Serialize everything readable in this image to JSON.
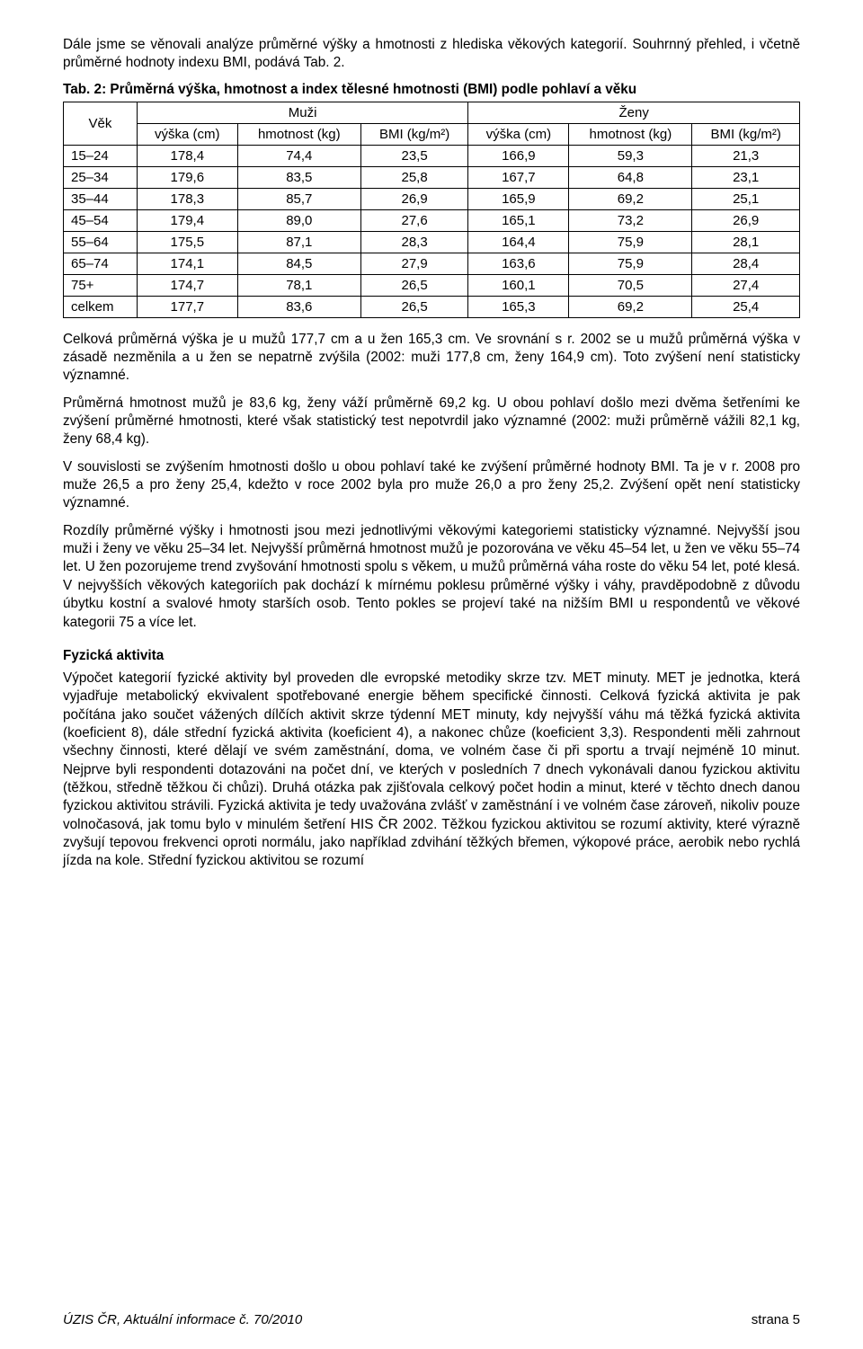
{
  "intro_paragraph": "Dále jsme se věnovali analýze průměrné výšky a hmotnosti z hlediska věkových kategorií. Souhrnný přehled, i včetně průměrné hodnoty indexu BMI, podává Tab. 2.",
  "table": {
    "caption": "Tab. 2: Průměrná výška, hmotnost a index tělesné hmotnosti (BMI) podle pohlaví a věku",
    "col_group_labels": {
      "age": "Věk",
      "men": "Muži",
      "women": "Ženy"
    },
    "subheaders": {
      "height": "výška (cm)",
      "weight": "hmotnost (kg)",
      "bmi": "BMI (kg/m²)"
    },
    "rows": [
      {
        "age": "15–24",
        "m_h": "178,4",
        "m_w": "74,4",
        "m_b": "23,5",
        "f_h": "166,9",
        "f_w": "59,3",
        "f_b": "21,3"
      },
      {
        "age": "25–34",
        "m_h": "179,6",
        "m_w": "83,5",
        "m_b": "25,8",
        "f_h": "167,7",
        "f_w": "64,8",
        "f_b": "23,1"
      },
      {
        "age": "35–44",
        "m_h": "178,3",
        "m_w": "85,7",
        "m_b": "26,9",
        "f_h": "165,9",
        "f_w": "69,2",
        "f_b": "25,1"
      },
      {
        "age": "45–54",
        "m_h": "179,4",
        "m_w": "89,0",
        "m_b": "27,6",
        "f_h": "165,1",
        "f_w": "73,2",
        "f_b": "26,9"
      },
      {
        "age": "55–64",
        "m_h": "175,5",
        "m_w": "87,1",
        "m_b": "28,3",
        "f_h": "164,4",
        "f_w": "75,9",
        "f_b": "28,1"
      },
      {
        "age": "65–74",
        "m_h": "174,1",
        "m_w": "84,5",
        "m_b": "27,9",
        "f_h": "163,6",
        "f_w": "75,9",
        "f_b": "28,4"
      },
      {
        "age": "75+",
        "m_h": "174,7",
        "m_w": "78,1",
        "m_b": "26,5",
        "f_h": "160,1",
        "f_w": "70,5",
        "f_b": "27,4"
      },
      {
        "age": "celkem",
        "m_h": "177,7",
        "m_w": "83,6",
        "m_b": "26,5",
        "f_h": "165,3",
        "f_w": "69,2",
        "f_b": "25,4"
      }
    ],
    "border_color": "#000000",
    "background_color": "#ffffff",
    "font_size_pt": 11
  },
  "paragraphs": {
    "p1": "Celková průměrná výška je u mužů 177,7 cm a u žen 165,3 cm. Ve srovnání s r. 2002 se u mužů průměrná výška v zásadě nezměnila a u žen se nepatrně zvýšila (2002: muži 177,8 cm, ženy 164,9 cm). Toto zvýšení není statisticky významné.",
    "p2": "Průměrná hmotnost mužů je 83,6 kg, ženy váží průměrně 69,2 kg. U obou pohlaví došlo mezi dvěma šetřeními ke zvýšení průměrné hmotnosti, které však statistický test nepotvrdil jako významné (2002: muži průměrně vážili 82,1 kg, ženy 68,4 kg).",
    "p3": "V souvislosti se zvýšením hmotnosti došlo u obou pohlaví také ke zvýšení průměrné hodnoty BMI. Ta je v r. 2008 pro muže 26,5 a pro ženy 25,4, kdežto v roce 2002 byla pro muže 26,0 a pro ženy 25,2. Zvýšení opět není statisticky významné.",
    "p4": "Rozdíly průměrné výšky i hmotnosti jsou mezi jednotlivými věkovými kategoriemi statisticky významné. Nejvyšší jsou muži i ženy ve věku 25–34 let. Nejvyšší průměrná hmotnost mužů je pozorována ve věku 45–54 let, u žen ve věku 55–74 let. U žen pozorujeme trend zvyšování hmotnosti spolu s věkem, u mužů průměrná váha roste do věku 54 let, poté klesá. V nejvyšších věkových kategoriích pak dochází k mírnému poklesu průměrné výšky i váhy, pravdě­podobně z důvodu úbytku kostní a svalové hmoty starších osob. Tento pokles se projeví také na nižším BMI u respondentů ve věkové kategorii 75 a více let."
  },
  "section_heading": "Fyzická aktivita",
  "section_paragraph": "Výpočet kategorií fyzické aktivity byl proveden dle evropské metodiky skrze tzv. MET minuty. MET je jednotka, která vyjadřuje metabolický ekvivalent spotřebované energie během specifické činnosti. Celková fyzická aktivita je pak počítána jako součet vážených dílčích aktivit skrze týdenní MET minuty, kdy nejvyšší váhu má těžká fyzická aktivita (koeficient 8), dále střední fyzická aktivita (koeficient 4), a nakonec chůze (koeficient 3,3). Respondenti měli zahrnout všechny činnosti, které dělají ve svém zaměstnání, doma, ve volném čase či při sportu a trvají nejméně 10 minut. Nejprve byli respondenti dotazováni na počet dní, ve kterých v posledních 7 dnech vykonávali danou fyzickou aktivitu (těžkou, středně těžkou či chůzi). Druhá otázka pak zjišťovala celkový počet hodin a minut, které v těchto dnech danou fyzickou aktivitou strávili. Fyzická aktivita je tedy uvažována zvlášť v zaměstnání i ve volném čase zároveň, nikoliv pouze volnočasová, jak tomu bylo v minulém šetření HIS ČR 2002. Těžkou fyzickou aktivitou se rozumí aktivity, které výrazně zvyšují tepovou frekvenci oproti normálu, jako například zdvihání těžkých břemen, výkopové práce, aerobik nebo rychlá jízda na kole. Střední fyzickou aktivitou se rozumí",
  "footer": {
    "source": "ÚZIS ČR, Aktuální informace č. 70/2010",
    "page": "strana 5"
  }
}
